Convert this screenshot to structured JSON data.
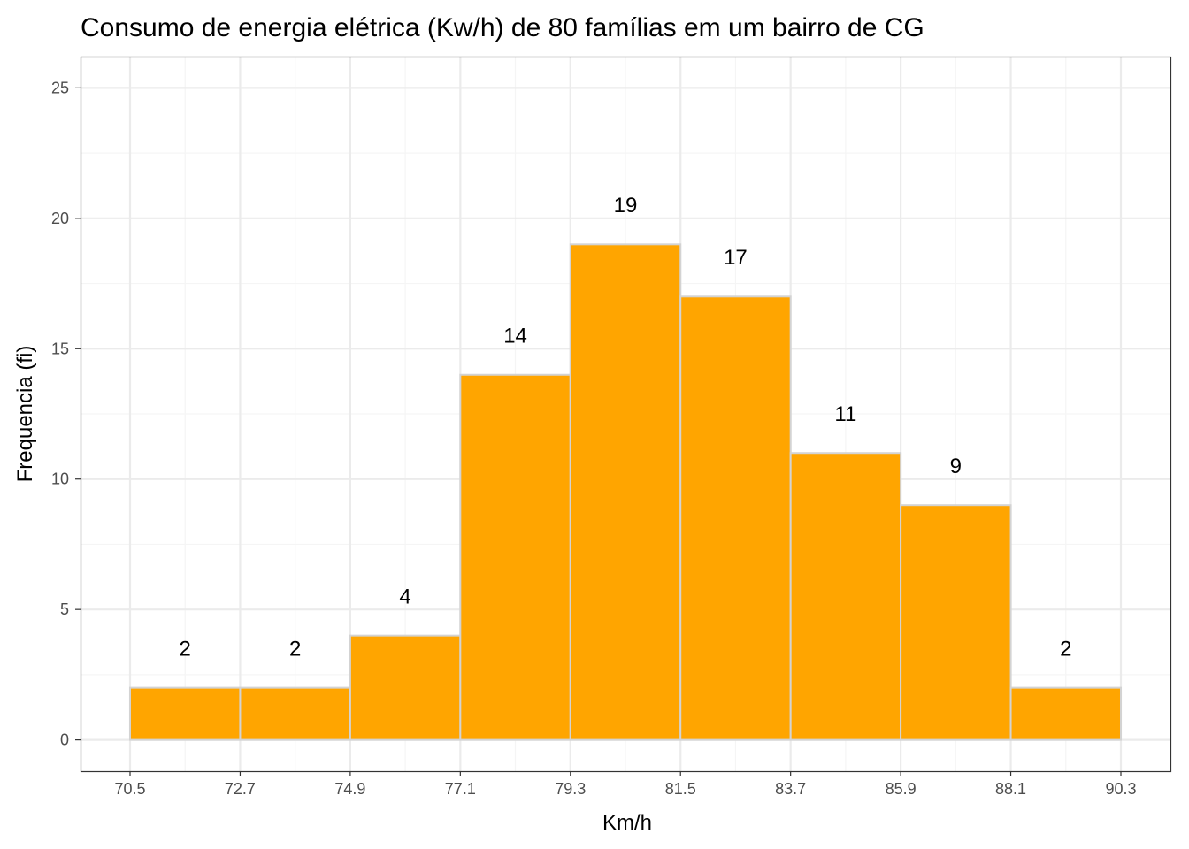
{
  "chart_data": {
    "type": "bar",
    "title": "Consumo de energia elétrica (Kw/h) de 80 famílias em um bairro de CG",
    "xlabel": "Km/h",
    "ylabel": "Frequencia (fi)",
    "bin_edges": [
      70.5,
      72.7,
      74.9,
      77.1,
      79.3,
      81.5,
      83.7,
      85.9,
      88.1,
      90.3
    ],
    "x_tick_labels": [
      "70.5",
      "72.7",
      "74.9",
      "77.1",
      "79.3",
      "81.5",
      "83.7",
      "85.9",
      "88.1",
      "90.3"
    ],
    "values": [
      2,
      2,
      4,
      14,
      19,
      17,
      11,
      9,
      2
    ],
    "value_labels": [
      "2",
      "2",
      "4",
      "14",
      "19",
      "17",
      "11",
      "9",
      "2"
    ],
    "y_ticks": [
      0,
      5,
      10,
      15,
      20,
      25
    ],
    "y_tick_labels": [
      "0",
      "5",
      "10",
      "15",
      "20",
      "25"
    ],
    "ylim": [
      -1.2,
      26.2
    ],
    "grid": true,
    "legend": false,
    "colors": {
      "bar_fill": "#FFA500",
      "bar_border": "#D3D3D3",
      "grid_major": "#EBEBEB",
      "grid_minor": "#F5F5F5",
      "panel_border": "#333333",
      "tick_text": "#4D4D4D"
    }
  }
}
